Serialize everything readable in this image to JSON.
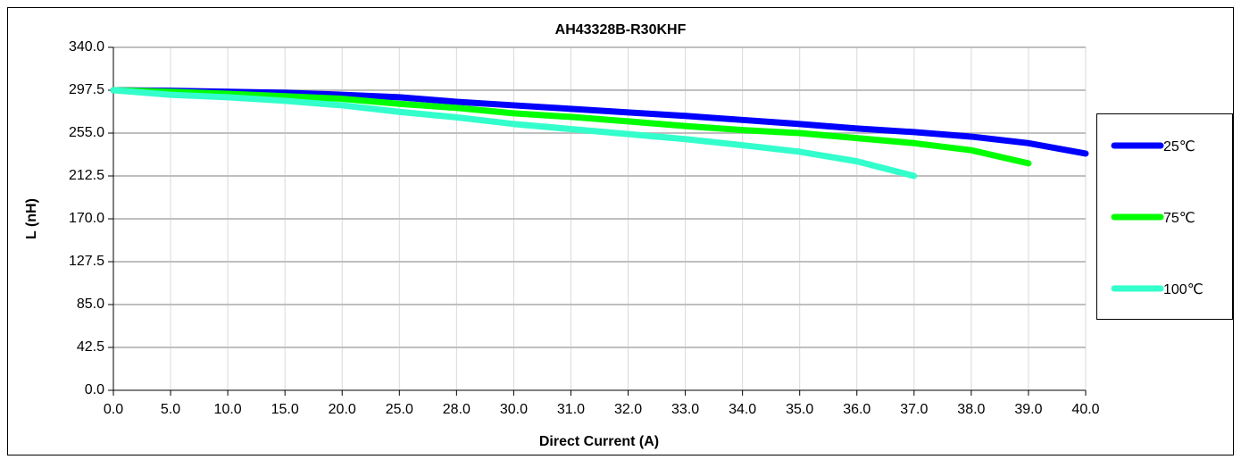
{
  "chart_data": {
    "type": "line",
    "title": "AH43328B-R30KHF",
    "x_label": "Direct Current (A)",
    "y_label": "L (nH)",
    "categories": [
      "0.0",
      "5.0",
      "10.0",
      "15.0",
      "20.0",
      "25.0",
      "28.0",
      "30.0",
      "31.0",
      "32.0",
      "33.0",
      "34.0",
      "35.0",
      "36.0",
      "37.0",
      "38.0",
      "39.0",
      "40.0"
    ],
    "series": [
      {
        "name": "25℃",
        "color": "#0000ff",
        "values": [
          297.5,
          297,
          296,
          295,
          293,
          290.5,
          286,
          282.5,
          279,
          275.5,
          272,
          268,
          264,
          259.5,
          256,
          251.5,
          245,
          234.7
        ]
      },
      {
        "name": "75℃",
        "color": "#00ff00",
        "values": [
          297.5,
          296,
          294,
          291.5,
          289,
          284,
          280,
          274.6,
          271,
          266.6,
          262,
          258,
          255,
          250,
          245,
          238,
          225,
          null
        ]
      },
      {
        "name": "100℃",
        "color": "#33ffcc",
        "values": [
          297.5,
          293,
          290.5,
          287,
          282.5,
          276,
          270.6,
          264,
          259,
          254,
          249,
          243,
          236.5,
          227,
          212.5,
          null,
          null,
          null
        ]
      }
    ],
    "ylim": [
      0,
      340
    ],
    "yticks": [
      {
        "value": 0,
        "label": "0.0"
      },
      42.5,
      {
        "value": 85,
        "label": "85.0"
      },
      127.5,
      {
        "value": 170,
        "label": "170.0"
      },
      212.5,
      {
        "value": 255,
        "label": "255.0"
      },
      297.5,
      {
        "value": 340,
        "label": "340.0"
      }
    ],
    "grid": true,
    "legend": "right"
  }
}
